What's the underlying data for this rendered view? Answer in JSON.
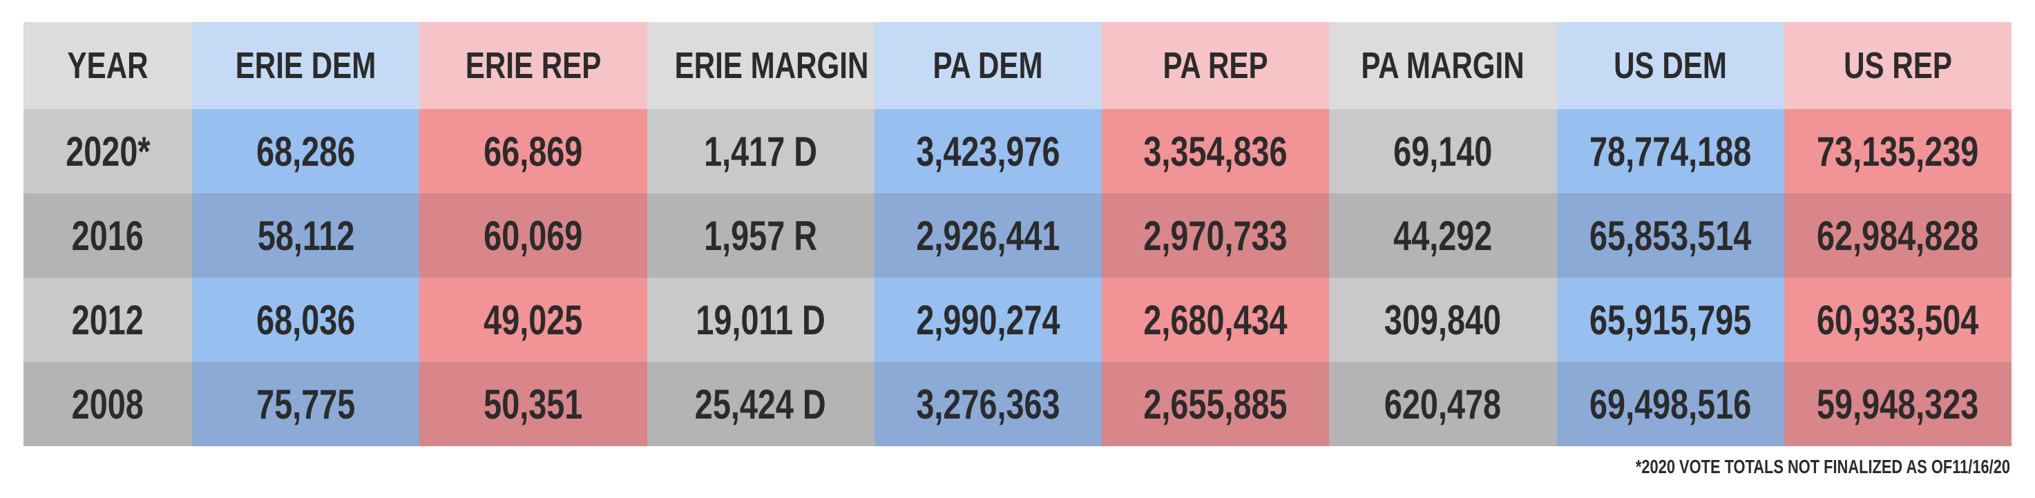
{
  "table": {
    "headers": [
      "YEAR",
      "ERIE DEM",
      "ERIE REP",
      "ERIE MARGIN",
      "PA DEM",
      "PA REP",
      "PA MARGIN",
      "US DEM",
      "US REP"
    ],
    "rows": [
      [
        "2020*",
        "68,286",
        "66,869",
        "1,417 D",
        "3,423,976",
        "3,354,836",
        "69,140",
        "78,774,188",
        "73,135,239"
      ],
      [
        "2016",
        "58,112",
        "60,069",
        "1,957 R",
        "2,926,441",
        "2,970,733",
        "44,292",
        "65,853,514",
        "62,984,828"
      ],
      [
        "2012",
        "68,036",
        "49,025",
        "19,011 D",
        "2,990,274",
        "2,680,434",
        "309,840",
        "65,915,795",
        "60,933,504"
      ],
      [
        "2008",
        "75,775",
        "50,351",
        "25,424 D",
        "3,276,363",
        "2,655,885",
        "620,478",
        "69,498,516",
        "59,948,323"
      ]
    ]
  },
  "footnote": "*2020 VOTE TOTALS NOT FINALIZED AS OF11/16/20"
}
